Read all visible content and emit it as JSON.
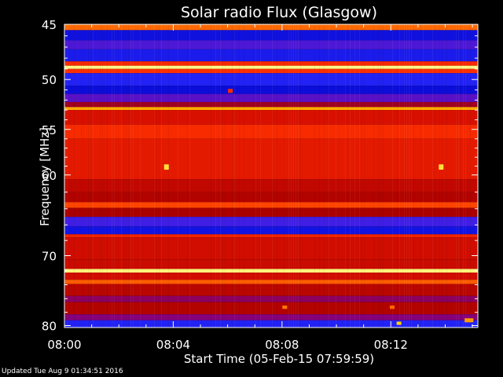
{
  "footer": {
    "updated": "Updated Tue Aug  9 01:34:51 2016"
  },
  "colors": {
    "background": "#000000",
    "text": "#ffffff",
    "colormap": [
      "#0000c8",
      "#2a2aff",
      "#7a00a0",
      "#a80000",
      "#d81000",
      "#ff3000",
      "#ff7a00",
      "#ffd000",
      "#ffffa0"
    ]
  },
  "chart_data": {
    "type": "heatmap",
    "title": "Solar radio Flux (Glasgow)",
    "xlabel": "Start Time (05-Feb-15 07:59:59)",
    "ylabel": "Frequency [MHz]",
    "xlim_minutes": [
      0,
      15.2
    ],
    "ylim_mhz": [
      45,
      80.3
    ],
    "y_inverted": true,
    "y_scale": "log",
    "x_ticks": [
      {
        "value": 0,
        "label": "08:00"
      },
      {
        "value": 4,
        "label": "08:04"
      },
      {
        "value": 8,
        "label": "08:08"
      },
      {
        "value": 12,
        "label": "08:12"
      }
    ],
    "y_ticks": [
      {
        "value": 45,
        "label": "45"
      },
      {
        "value": 50,
        "label": "50"
      },
      {
        "value": 55,
        "label": "55"
      },
      {
        "value": 60,
        "label": "60"
      },
      {
        "value": 70,
        "label": "70"
      },
      {
        "value": 80,
        "label": "80"
      }
    ],
    "y_minor_ticks": [
      46,
      47,
      48,
      49,
      51,
      52,
      53,
      54,
      56,
      57,
      58,
      59,
      62,
      64,
      66,
      68,
      72,
      74,
      76,
      78
    ],
    "intensity_scale": "0 = blue (low) … 1 = yellow/white (high)",
    "frequency_bands": [
      {
        "f0": 45.0,
        "f1": 45.5,
        "level": 0.72
      },
      {
        "f0": 45.5,
        "f1": 46.4,
        "level": 0.05
      },
      {
        "f0": 46.4,
        "f1": 47.2,
        "level": 0.18
      },
      {
        "f0": 47.2,
        "f1": 48.3,
        "level": 0.08
      },
      {
        "f0": 48.3,
        "f1": 48.7,
        "level": 0.6
      },
      {
        "f0": 48.7,
        "f1": 49.0,
        "level": 0.98
      },
      {
        "f0": 49.0,
        "f1": 49.4,
        "level": 0.62
      },
      {
        "f0": 49.4,
        "f1": 50.6,
        "level": 0.1
      },
      {
        "f0": 50.6,
        "f1": 51.4,
        "level": 0.04
      },
      {
        "f0": 51.4,
        "f1": 52.2,
        "level": 0.2
      },
      {
        "f0": 52.2,
        "f1": 52.7,
        "level": 0.35
      },
      {
        "f0": 52.7,
        "f1": 53.0,
        "level": 0.82
      },
      {
        "f0": 53.0,
        "f1": 54.5,
        "level": 0.5
      },
      {
        "f0": 54.5,
        "f1": 56.0,
        "level": 0.6
      },
      {
        "f0": 56.0,
        "f1": 60.5,
        "level": 0.54
      },
      {
        "f0": 60.5,
        "f1": 62.0,
        "level": 0.44
      },
      {
        "f0": 62.0,
        "f1": 63.2,
        "level": 0.4
      },
      {
        "f0": 63.2,
        "f1": 63.9,
        "level": 0.66
      },
      {
        "f0": 63.9,
        "f1": 65.0,
        "level": 0.38
      },
      {
        "f0": 65.0,
        "f1": 66.2,
        "level": 0.16
      },
      {
        "f0": 66.2,
        "f1": 67.2,
        "level": 0.06
      },
      {
        "f0": 67.2,
        "f1": 67.6,
        "level": 0.58
      },
      {
        "f0": 67.6,
        "f1": 70.5,
        "level": 0.48
      },
      {
        "f0": 70.5,
        "f1": 71.8,
        "level": 0.46
      },
      {
        "f0": 71.8,
        "f1": 72.3,
        "level": 0.97
      },
      {
        "f0": 72.3,
        "f1": 73.3,
        "level": 0.48
      },
      {
        "f0": 73.3,
        "f1": 73.9,
        "level": 0.7
      },
      {
        "f0": 73.9,
        "f1": 75.6,
        "level": 0.42
      },
      {
        "f0": 75.6,
        "f1": 76.5,
        "level": 0.3
      },
      {
        "f0": 76.5,
        "f1": 78.3,
        "level": 0.4
      },
      {
        "f0": 78.3,
        "f1": 79.2,
        "level": 0.28
      },
      {
        "f0": 79.2,
        "f1": 80.3,
        "level": 0.1
      }
    ],
    "bursts": [
      {
        "t": 3.75,
        "f0": 58.8,
        "f1": 59.4,
        "level": 0.92
      },
      {
        "t": 13.85,
        "f0": 58.8,
        "f1": 59.4,
        "level": 0.92
      },
      {
        "t": 6.1,
        "f0": 50.9,
        "f1": 51.3,
        "level": 0.6
      },
      {
        "t": 8.1,
        "f0": 77.0,
        "f1": 77.5,
        "level": 0.75
      },
      {
        "t": 12.05,
        "f0": 77.0,
        "f1": 77.5,
        "level": 0.72
      },
      {
        "t": 12.3,
        "f0": 79.4,
        "f1": 79.9,
        "level": 0.88
      },
      {
        "t": 14.8,
        "f0": 78.9,
        "f1": 79.5,
        "level": 0.8
      },
      {
        "t": 14.95,
        "f0": 78.9,
        "f1": 79.5,
        "level": 0.8
      }
    ]
  }
}
